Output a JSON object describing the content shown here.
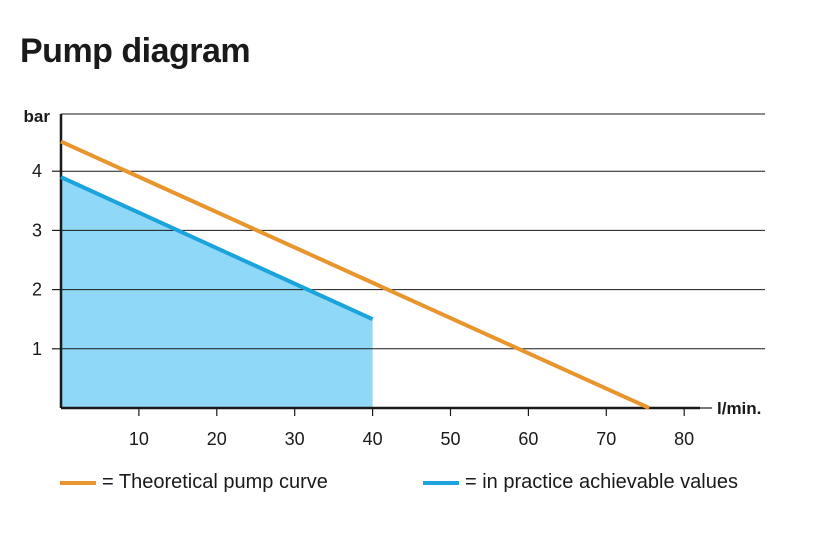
{
  "title": "Pump diagram",
  "chart_data": {
    "type": "area",
    "title": "Pump diagram",
    "xlabel": "l/min.",
    "ylabel": "bar",
    "xlim": [
      0,
      80
    ],
    "ylim": [
      0,
      5
    ],
    "x_ticks": [
      10,
      20,
      30,
      40,
      50,
      60,
      70,
      80
    ],
    "y_ticks": [
      1,
      2,
      3,
      4
    ],
    "grid": "horizontal",
    "legend_position": "bottom",
    "series": [
      {
        "name": "= Theoretical pump curve",
        "kind": "line",
        "color": "#e8952e",
        "x": [
          0,
          75.5
        ],
        "y": [
          4.5,
          0
        ]
      },
      {
        "name": "= in practice achievable values",
        "kind": "area",
        "color": "#1aa3dc",
        "fill": "#8fd8f7",
        "x": [
          0,
          40
        ],
        "y": [
          3.9,
          1.5
        ]
      }
    ]
  }
}
